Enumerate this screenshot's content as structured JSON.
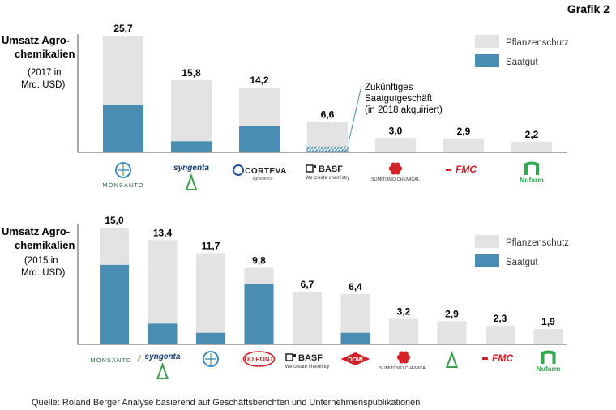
{
  "header": {
    "grafik_label": "Grafik 2"
  },
  "source": "Quelle: Roland Berger Analyse basierend auf Geschäftsberichten und Unternehmenspublikationen",
  "colors": {
    "pflanzenschutz": "#e3e3e3",
    "saatgut": "#4a8db3",
    "axis": "#555555",
    "hatch": "#4a8db3"
  },
  "chart_data": [
    {
      "type": "bar",
      "stacked": true,
      "title_lines": [
        "Umsatz Agro-",
        "chemikalien"
      ],
      "subtitle_lines": [
        "(2017 in",
        "Mrd. USD)"
      ],
      "categories": [
        "Monsanto",
        "Syngenta",
        "Corteva",
        "BASF",
        "Sumitomo Chemical",
        "FMC",
        "Nufarm"
      ],
      "totals": [
        "25,7",
        "15,8",
        "14,2",
        "6,6",
        "3,0",
        "2,9",
        "2,2"
      ],
      "series": [
        {
          "name": "Saatgut",
          "values": [
            10.4,
            2.3,
            5.6,
            1.1,
            0,
            0,
            0
          ]
        },
        {
          "name": "Pflanzenschutz",
          "values": [
            15.3,
            13.5,
            8.6,
            5.5,
            3.0,
            2.9,
            2.2
          ]
        }
      ],
      "legend": [
        "Pflanzenschutz",
        "Saatgut"
      ],
      "annotation_lines": [
        "Zukünftiges",
        "Saatgutgeschäft",
        "(in 2018 akquiriert)"
      ],
      "logos": [
        {
          "top": "BAYER",
          "bottom": "MONSANTO",
          "icon": "bayer-cross-icon"
        },
        {
          "top": "syngenta",
          "icon": "syngenta-leaf-icon"
        },
        {
          "top": "CORTEVA",
          "sub": "agriscience",
          "icon": "corteva-globe-icon"
        },
        {
          "top": "BASF",
          "sub": "We create chemistry",
          "icon": "basf-square-icon"
        },
        {
          "top": "SUMITOMO CHEMICAL",
          "icon": "sumitomo-flower-icon"
        },
        {
          "top": "FMC",
          "icon": "fmc-icon"
        },
        {
          "top": "Nufarm",
          "icon": "nufarm-n-icon"
        }
      ],
      "ylim": [
        0,
        25.7
      ]
    },
    {
      "type": "bar",
      "stacked": true,
      "title_lines": [
        "Umsatz Agro-",
        "chemikalien"
      ],
      "subtitle_lines": [
        "(2015 in",
        "Mrd. USD)"
      ],
      "categories": [
        "Monsanto",
        "Syngenta",
        "Bayer",
        "DuPont",
        "BASF",
        "Dow",
        "Sumitomo Chemical",
        "Syngenta Seeds",
        "FMC",
        "Nufarm"
      ],
      "totals": [
        "15,0",
        "13,4",
        "11,7",
        "9,8",
        "6,7",
        "6,4",
        "3,2",
        "2,9",
        "2,3",
        "1,9"
      ],
      "series": [
        {
          "name": "Saatgut",
          "values": [
            10.2,
            2.6,
            1.4,
            7.7,
            0,
            1.4,
            0,
            0,
            0,
            0
          ]
        },
        {
          "name": "Pflanzenschutz",
          "values": [
            4.8,
            10.8,
            10.3,
            2.1,
            6.7,
            5.0,
            3.2,
            2.9,
            2.3,
            1.9
          ]
        }
      ],
      "legend": [
        "Pflanzenschutz",
        "Saatgut"
      ],
      "logos": [
        {
          "top": "MONSANTO",
          "icon": "monsanto-leaf-icon"
        },
        {
          "top": "syngenta",
          "icon": "syngenta-leaf-icon"
        },
        {
          "top": "BAYER",
          "icon": "bayer-cross-icon"
        },
        {
          "top": "DU PONT",
          "icon": "dupont-oval-icon"
        },
        {
          "top": "BASF",
          "sub": "We create chemistry",
          "icon": "basf-square-icon"
        },
        {
          "top": "DOW",
          "icon": "dow-diamond-icon"
        },
        {
          "top": "SUMITOMO CHEMICAL",
          "icon": "sumitomo-flower-icon"
        },
        {
          "top": "",
          "icon": "syngenta-leaf-icon"
        },
        {
          "top": "FMC",
          "icon": "fmc-icon"
        },
        {
          "top": "Nufarm",
          "icon": "nufarm-n-icon"
        }
      ],
      "ylim": [
        0,
        15.0
      ]
    }
  ]
}
